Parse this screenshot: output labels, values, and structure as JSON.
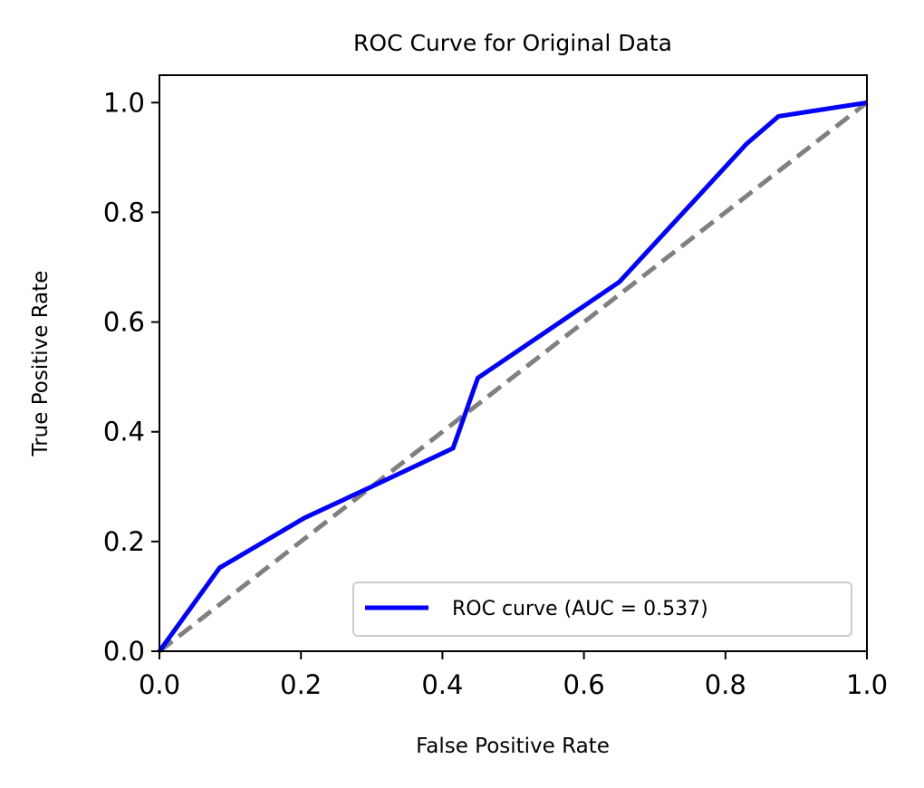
{
  "chart_data": {
    "type": "line",
    "title": "ROC Curve for Original Data",
    "xlabel": "False Positive Rate",
    "ylabel": "True Positive Rate",
    "xlim": [
      0.0,
      1.0
    ],
    "ylim": [
      0.0,
      1.05
    ],
    "xticks": [
      0.0,
      0.2,
      0.4,
      0.6,
      0.8,
      1.0
    ],
    "yticks": [
      0.0,
      0.2,
      0.4,
      0.6,
      0.8,
      1.0
    ],
    "xtick_labels": [
      "0.0",
      "0.2",
      "0.4",
      "0.6",
      "0.8",
      "1.0"
    ],
    "ytick_labels": [
      "0.0",
      "0.2",
      "0.4",
      "0.6",
      "0.8",
      "1.0"
    ],
    "grid": false,
    "legend_position": "lower-right",
    "series": [
      {
        "name": "ROC curve (AUC = 0.537)",
        "color": "#0000ff",
        "style": "solid",
        "x": [
          0.0,
          0.085,
          0.205,
          0.3,
          0.415,
          0.45,
          0.65,
          0.83,
          0.875,
          1.0
        ],
        "y": [
          0.0,
          0.152,
          0.243,
          0.3,
          0.37,
          0.498,
          0.673,
          0.925,
          0.975,
          1.0
        ]
      }
    ],
    "reference_line": {
      "color": "#808080",
      "style": "dashed",
      "x": [
        0.0,
        1.0
      ],
      "y": [
        0.0,
        1.0
      ]
    }
  }
}
